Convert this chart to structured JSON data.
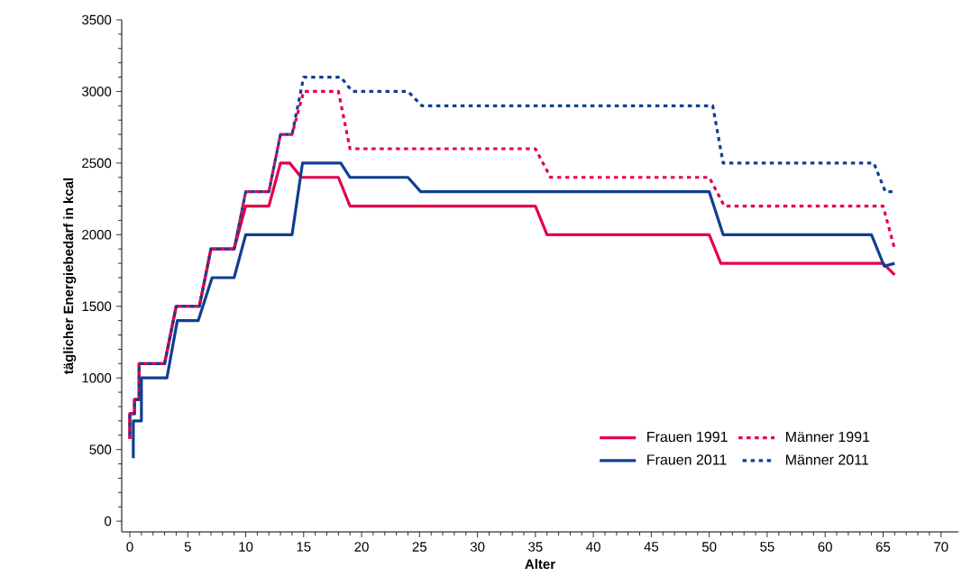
{
  "chart_data": {
    "type": "line",
    "xlabel": "Alter",
    "ylabel": "täglicher Energiebedarf in kcal",
    "xlim": [
      -0.7,
      71.5
    ],
    "ylim": [
      -75,
      3500
    ],
    "xticks": [
      0,
      5,
      10,
      15,
      20,
      25,
      30,
      35,
      40,
      45,
      50,
      55,
      60,
      65,
      70
    ],
    "yticks": [
      0,
      500,
      1000,
      1500,
      2000,
      2500,
      3000,
      3500
    ],
    "grid": false,
    "legend": "bottom right",
    "marker": "none",
    "series": [
      {
        "name": "Frauen 1991",
        "color": "#e4004b",
        "line_style": "solid",
        "x": [
          0,
          0,
          0.4,
          0.4,
          0.8,
          0.8,
          3,
          4,
          6,
          7,
          9,
          10,
          12,
          13,
          13.8,
          14.8,
          18,
          19,
          35,
          36,
          50,
          51,
          65,
          66
        ],
        "values": [
          575,
          750,
          750,
          850,
          850,
          1100,
          1100,
          1500,
          1500,
          1900,
          1900,
          2200,
          2200,
          2500,
          2500,
          2400,
          2400,
          2200,
          2200,
          2000,
          2000,
          1800,
          1800,
          1720
        ]
      },
      {
        "name": "Männer 1991",
        "color": "#e4004b",
        "line_style": "dashed",
        "x": [
          0,
          0,
          0.4,
          0.4,
          0.8,
          0.8,
          3,
          4,
          6,
          7,
          9,
          10,
          12,
          13,
          14,
          15,
          18,
          19,
          35,
          36.3,
          50,
          51.3,
          65,
          66
        ],
        "values": [
          575,
          750,
          750,
          850,
          850,
          1100,
          1100,
          1500,
          1500,
          1900,
          1900,
          2300,
          2300,
          2700,
          2700,
          3000,
          3000,
          2600,
          2600,
          2400,
          2400,
          2200,
          2200,
          1900
        ]
      },
      {
        "name": "Frauen 2011",
        "color": "#103f91",
        "line_style": "solid",
        "x": [
          0.3,
          0.3,
          1,
          1,
          3.2,
          4.1,
          5.9,
          7.1,
          9,
          10,
          14,
          14.9,
          18.2,
          19,
          24,
          25.1,
          50,
          51.2,
          64,
          65.1,
          66
        ],
        "values": [
          440,
          700,
          700,
          1000,
          1000,
          1400,
          1400,
          1700,
          1700,
          2000,
          2000,
          2500,
          2500,
          2400,
          2400,
          2300,
          2300,
          2000,
          2000,
          1780,
          1800
        ]
      },
      {
        "name": "Männer 2011",
        "color": "#103f91",
        "line_style": "dashed",
        "x": [
          0,
          0,
          0.4,
          0.4,
          0.8,
          0.8,
          3,
          4,
          6,
          7,
          9,
          10,
          12,
          13,
          14,
          15,
          18.2,
          19.2,
          24,
          25.2,
          50.3,
          51.2,
          64.2,
          65.2,
          66
        ],
        "values": [
          575,
          750,
          750,
          850,
          850,
          1100,
          1100,
          1500,
          1500,
          1900,
          1900,
          2300,
          2300,
          2700,
          2700,
          3100,
          3100,
          3000,
          3000,
          2900,
          2900,
          2500,
          2500,
          2300,
          2300
        ]
      }
    ]
  }
}
